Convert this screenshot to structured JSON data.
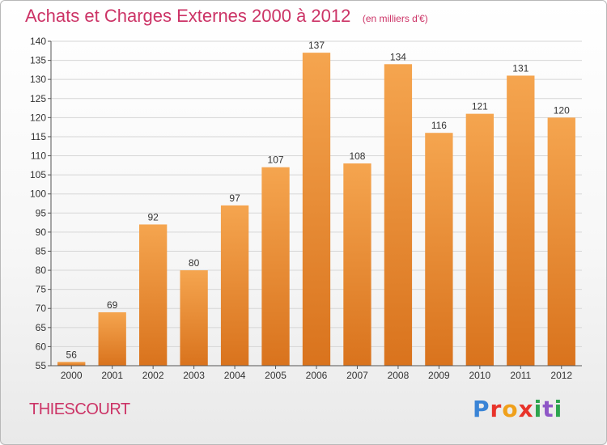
{
  "header": {
    "title": "Achats et Charges Externes 2000 à 2012",
    "unit": "(en milliers d'€)"
  },
  "footer": {
    "commune": "THIESCOURT",
    "logo_text": "Proxiti"
  },
  "colors": {
    "title": "#cc3366",
    "bar_top": "#f5a54f",
    "bar_bottom": "#d9731d",
    "grid": "#d6d6d6"
  },
  "chart_data": {
    "type": "bar",
    "title": "Achats et Charges Externes 2000 à 2012",
    "subtitle": "(en milliers d'€)",
    "xlabel": "",
    "ylabel": "",
    "categories": [
      "2000",
      "2001",
      "2002",
      "2003",
      "2004",
      "2005",
      "2006",
      "2007",
      "2008",
      "2009",
      "2010",
      "2011",
      "2012"
    ],
    "values": [
      56,
      69,
      92,
      80,
      97,
      107,
      137,
      108,
      134,
      116,
      121,
      131,
      120
    ],
    "ylim": [
      55,
      140
    ],
    "yticks": [
      55,
      60,
      65,
      70,
      75,
      80,
      85,
      90,
      95,
      100,
      105,
      110,
      115,
      120,
      125,
      130,
      135,
      140
    ],
    "grid": true,
    "data_labels": true,
    "legend": "none"
  }
}
